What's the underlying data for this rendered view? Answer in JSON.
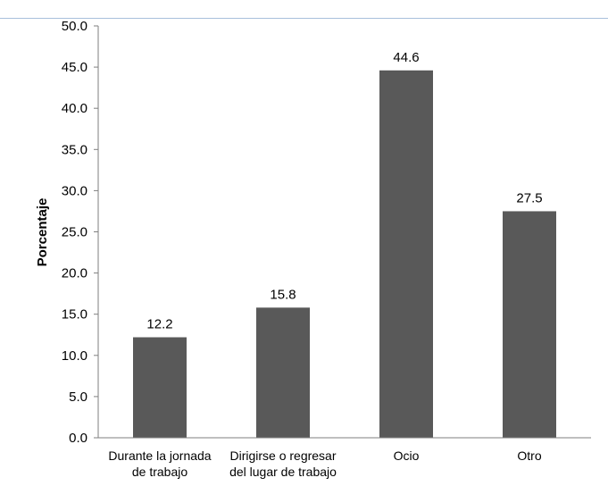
{
  "chart_data": {
    "type": "bar",
    "ylabel": "Porcentaje",
    "ylim": [
      0,
      50
    ],
    "ytick_step": 5,
    "ytick_labels": [
      "0.0",
      "5.0",
      "10.0",
      "15.0",
      "20.0",
      "25.0",
      "30.0",
      "35.0",
      "40.0",
      "45.0",
      "50.0"
    ],
    "categories": [
      [
        "Durante la jornada",
        "de trabajo"
      ],
      [
        "Dirigirse o regresar",
        "del lugar de trabajo"
      ],
      [
        "Ocio"
      ],
      [
        "Otro"
      ]
    ],
    "values": [
      12.2,
      15.8,
      44.6,
      27.5
    ],
    "data_labels": [
      "12.2",
      "15.8",
      "44.6",
      "27.5"
    ],
    "bar_color": "#595959",
    "grid": false,
    "legend": "none"
  },
  "colors": {
    "top_rule": "#a9c0dc",
    "axis": "#7f7f7f"
  }
}
